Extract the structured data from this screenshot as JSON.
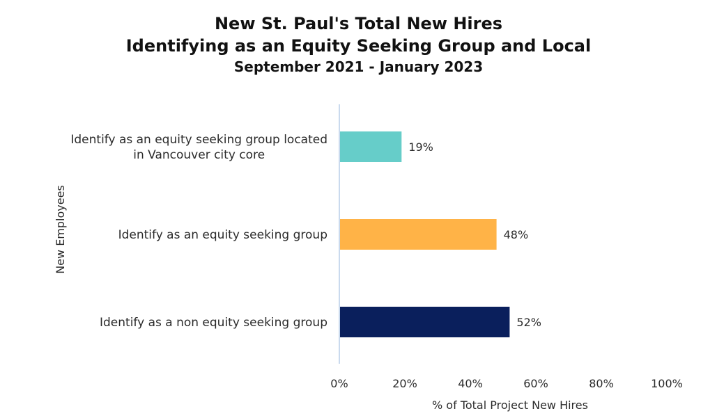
{
  "chart_data": {
    "type": "bar",
    "orientation": "horizontal",
    "title": [
      "New St. Paul's Total New Hires",
      "Identifying as an Equity Seeking Group and Local"
    ],
    "subtitle": "September 2021 - January 2023",
    "categories": [
      [
        "Identify as an equity seeking group located",
        "in Vancouver city core"
      ],
      [
        "Identify as an equity seeking group"
      ],
      [
        "Identify as a non equity seeking group"
      ]
    ],
    "values": [
      19,
      48,
      52
    ],
    "data_labels": [
      "19%",
      "48%",
      "52%"
    ],
    "colors": [
      "#66cdc9",
      "#ffb347",
      "#0a1f5c"
    ],
    "xlabel": "% of Total Project New Hires",
    "ylabel": "New Employees",
    "xlim": [
      0,
      100
    ],
    "xticks": [
      "0%",
      "20%",
      "40%",
      "60%",
      "80%",
      "100%"
    ],
    "grid": false,
    "legend": "none"
  }
}
